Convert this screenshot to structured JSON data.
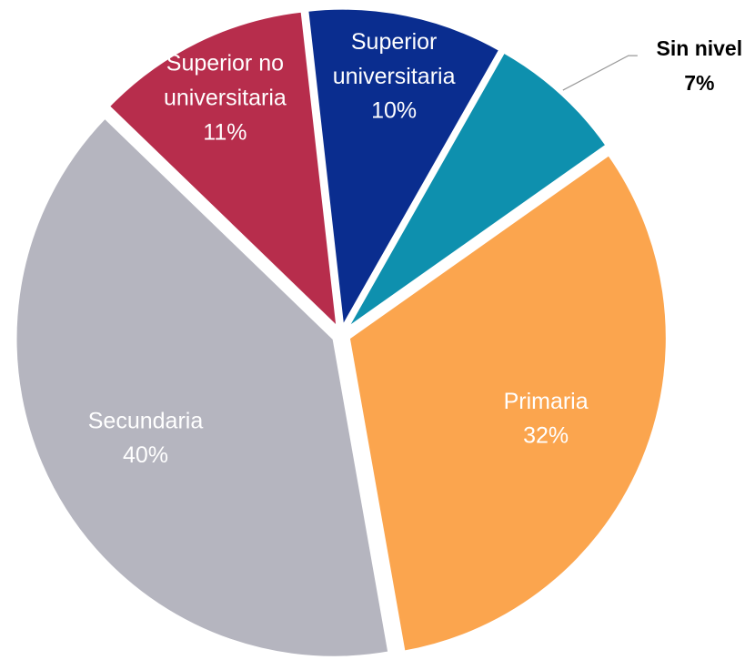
{
  "chart_data": {
    "type": "pie",
    "categories": [
      "Superior universitaria",
      "Sin nivel",
      "Primaria",
      "Secundaria",
      "Superior no universitaria"
    ],
    "values": [
      10,
      7,
      32,
      40,
      11
    ],
    "value_labels": [
      "10%",
      "7%",
      "32%",
      "40%",
      "11%"
    ],
    "colors": [
      "#0a2d8f",
      "#0e90ae",
      "#fba54e",
      "#b5b5bf",
      "#b72d4c"
    ]
  }
}
